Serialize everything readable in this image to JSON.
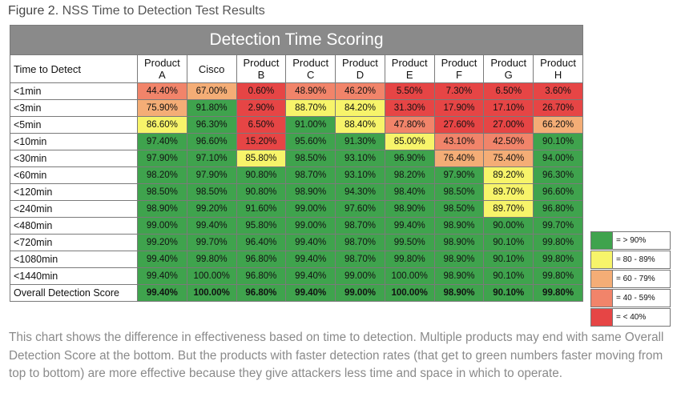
{
  "figure": {
    "label": "Figure 2.",
    "title": "NSS Time to Detection Test Results"
  },
  "chart_data": {
    "type": "table",
    "title": "Detection Time Scoring",
    "corner_label": "Time to Detect",
    "columns": [
      {
        "line1": "Product",
        "line2": "A"
      },
      {
        "line1": "Cisco",
        "line2": ""
      },
      {
        "line1": "Product",
        "line2": "B"
      },
      {
        "line1": "Product",
        "line2": "C"
      },
      {
        "line1": "Product",
        "line2": "D"
      },
      {
        "line1": "Product",
        "line2": "E"
      },
      {
        "line1": "Product",
        "line2": "F"
      },
      {
        "line1": "Product",
        "line2": "G"
      },
      {
        "line1": "Product",
        "line2": "H"
      }
    ],
    "rows": [
      {
        "label": "<1min",
        "values": [
          "44.40%",
          "67.00%",
          "0.60%",
          "48.90%",
          "46.20%",
          "5.50%",
          "7.30%",
          "6.50%",
          "3.60%"
        ]
      },
      {
        "label": "<3min",
        "values": [
          "75.90%",
          "91.80%",
          "2.90%",
          "88.70%",
          "84.20%",
          "31.30%",
          "17.90%",
          "17.10%",
          "26.70%"
        ]
      },
      {
        "label": "<5min",
        "values": [
          "86.60%",
          "96.30%",
          "6.50%",
          "91.00%",
          "88.40%",
          "47.80%",
          "27.60%",
          "27.00%",
          "66.20%"
        ]
      },
      {
        "label": "<10min",
        "values": [
          "97.40%",
          "96.60%",
          "15.20%",
          "95.60%",
          "91.30%",
          "85.00%",
          "43.10%",
          "42.50%",
          "90.10%"
        ]
      },
      {
        "label": "<30min",
        "values": [
          "97.90%",
          "97.10%",
          "85.80%",
          "98.50%",
          "93.10%",
          "96.90%",
          "76.40%",
          "75.40%",
          "94.00%"
        ]
      },
      {
        "label": "<60min",
        "values": [
          "98.20%",
          "97.90%",
          "90.80%",
          "98.70%",
          "93.10%",
          "98.20%",
          "97.90%",
          "89.20%",
          "96.30%"
        ]
      },
      {
        "label": "<120min",
        "values": [
          "98.50%",
          "98.50%",
          "90.80%",
          "98.90%",
          "94.30%",
          "98.40%",
          "98.50%",
          "89.70%",
          "96.60%"
        ]
      },
      {
        "label": "<240min",
        "values": [
          "98.90%",
          "99.20%",
          "91.60%",
          "99.00%",
          "97.60%",
          "98.90%",
          "98.50%",
          "89.70%",
          "96.80%"
        ]
      },
      {
        "label": "<480min",
        "values": [
          "99.00%",
          "99.40%",
          "95.80%",
          "99.00%",
          "98.70%",
          "99.40%",
          "98.90%",
          "90.00%",
          "99.70%"
        ]
      },
      {
        "label": "<720min",
        "values": [
          "99.20%",
          "99.70%",
          "96.40%",
          "99.40%",
          "98.70%",
          "99.50%",
          "98.90%",
          "90.10%",
          "99.80%"
        ]
      },
      {
        "label": "<1080min",
        "values": [
          "99.40%",
          "99.80%",
          "96.80%",
          "99.40%",
          "98.70%",
          "99.80%",
          "98.90%",
          "90.10%",
          "99.80%"
        ]
      },
      {
        "label": "<1440min",
        "values": [
          "99.40%",
          "100.00%",
          "96.80%",
          "99.40%",
          "99.00%",
          "100.00%",
          "98.90%",
          "90.10%",
          "99.80%"
        ]
      },
      {
        "label": "Overall Detection Score",
        "values": [
          "99.40%",
          "100.00%",
          "96.80%",
          "99.40%",
          "99.00%",
          "100.00%",
          "98.90%",
          "90.10%",
          "99.80%"
        ]
      }
    ],
    "legend": [
      {
        "label": "= > 90%",
        "color": "#3fa34d"
      },
      {
        "label": "= 80 - 89%",
        "color": "#f7f46a"
      },
      {
        "label": "= 60 - 79%",
        "color": "#f4ad76"
      },
      {
        "label": "= 40 - 59%",
        "color": "#f1846a"
      },
      {
        "label": "= < 40%",
        "color": "#e64545"
      }
    ]
  },
  "caption": "This chart shows the difference in effectiveness based on time to detection. Multiple products may end with same Overall Detection Score at the bottom. But the products with faster detection rates (that get to green numbers faster moving from top to bottom) are more effective because they give attackers less time and space in which to operate."
}
